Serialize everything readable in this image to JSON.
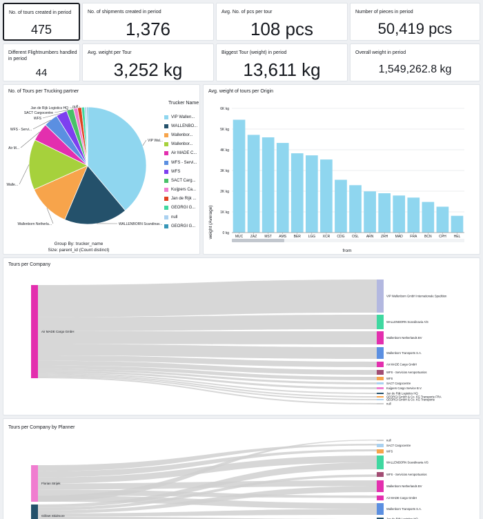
{
  "kpis": {
    "tours": {
      "title": "No. of tours created in period",
      "value": "475"
    },
    "shipments": {
      "title": "No. of shipments created in period",
      "value": "1,376"
    },
    "avg_pcs": {
      "title": "Avg. No. of pcs per tour",
      "value": "108 pcs"
    },
    "pieces": {
      "title": "Number of pieces in period",
      "value": "50,419 pcs"
    },
    "flightnumbers": {
      "title": "Different Flightnumbers handled in period",
      "value": "44"
    },
    "avg_weight": {
      "title": "Avg. weight per Tour",
      "value": "3,252 kg"
    },
    "biggest_tour": {
      "title": "Biggest Tour (weight) in period",
      "value": "13,611 kg"
    },
    "overall_weight": {
      "title": "Overall weight in period",
      "value": "1,549,262.8 kg"
    }
  },
  "pie_panel": {
    "title": "No. of Tours per Trucking partner",
    "legend_title": "Trucker Name",
    "group_by": "Group By: trucker_name",
    "size": "Size: parent_id (Count distinct)",
    "slice_labels": [
      "VIP Wal...",
      "WALLENBORN Scandinav...",
      "Wallenborn Netherla...",
      "Walle...",
      "Air M...",
      "WFS - Servi...",
      "WFS",
      "SACT Cargocentre",
      "Jan de Rijk Logistics HQ",
      "null"
    ],
    "legend_items": [
      {
        "label": "VIP Wallen...",
        "color": "#8fd6ef"
      },
      {
        "label": "WALLENBO...",
        "color": "#24516b"
      },
      {
        "label": "Wallenbor...",
        "color": "#f7a44b"
      },
      {
        "label": "Wallenbor...",
        "color": "#a6d13c"
      },
      {
        "label": "Air MADE C...",
        "color": "#e32fae"
      },
      {
        "label": "WFS - Servi...",
        "color": "#5b8fe1"
      },
      {
        "label": "WFS",
        "color": "#7d3ff0"
      },
      {
        "label": "SACT Carg...",
        "color": "#49c168"
      },
      {
        "label": "Kuijpers Ca...",
        "color": "#f07dd0"
      },
      {
        "label": "Jan de Rijk ...",
        "color": "#e04120"
      },
      {
        "label": "GEORGI G...",
        "color": "#3fd8a0"
      },
      {
        "label": "null",
        "color": "#aad1f0"
      },
      {
        "label": "GEORGI G...",
        "color": "#3796b7"
      }
    ]
  },
  "bar_panel": {
    "title": "Avg. weight of tours per Origin",
    "bar_color": "#8fd6ef"
  },
  "chart_data": {
    "type": "bar",
    "categories": [
      "MUC",
      "ZAZ",
      "MST",
      "AMS",
      "BER",
      "LGG",
      "XCR",
      "CDG",
      "OSL",
      "ARN",
      "ZRH",
      "MAD",
      "FRA",
      "BCN",
      "CPH",
      "HEL"
    ],
    "values": [
      5450,
      4720,
      4600,
      4330,
      3830,
      3730,
      3530,
      2550,
      2290,
      1990,
      1900,
      1790,
      1690,
      1480,
      1250,
      810
    ],
    "xlabel": "from",
    "ylabel": "weight (Average)",
    "ylim": [
      0,
      6000
    ],
    "yticks": [
      "0 kg",
      "1K kg",
      "2K kg",
      "3K kg",
      "4K kg",
      "5K kg",
      "6K kg"
    ]
  },
  "sankey1": {
    "title": "Tours per Company",
    "source_label": "Air MADE Cargo GmbH",
    "source_color": "#e32fae",
    "targets": [
      {
        "label": "VIP Wallenborn GmbH Internationale Spedition",
        "color": "#b3b8e0"
      },
      {
        "label": "WALLENBORN Scandinavia A/S",
        "color": "#3fd8a0"
      },
      {
        "label": "Wallenborn Netherlands BV",
        "color": "#e32fae"
      },
      {
        "label": "Wallenborn Transports S.A.",
        "color": "#5b8fe1"
      },
      {
        "label": "Air MADE Cargo GmbH",
        "color": "#e32fae"
      },
      {
        "label": "WFS - Servicios Aeroportuarios",
        "color": "#a24d73"
      },
      {
        "label": "WFS",
        "color": "#f7a44b"
      },
      {
        "label": "SACT Cargocentre",
        "color": "#aad1f0"
      },
      {
        "label": "Kuijpers Cargo Service B.V.",
        "color": "#f07dd0"
      },
      {
        "label": "Jan de Rijk Logistics HQ",
        "color": "#24516b"
      },
      {
        "label": "GEORGI GmbH & Co. KG Transporte FRA",
        "color": "#f7a44b"
      },
      {
        "label": "GEORGI GmbH & Co. KG Transporte",
        "color": "#aad1f0"
      },
      {
        "label": "null",
        "color": "#cccccc"
      }
    ]
  },
  "sankey2": {
    "title": "Tours per Company by Planner",
    "sources": [
      {
        "label": "Florian Strijek",
        "color": "#f07dd0"
      },
      {
        "label": "Gilliset Skidmore",
        "color": "#24516b"
      }
    ],
    "targets": [
      {
        "label": "null",
        "color": "#cccccc"
      },
      {
        "label": "SACT Cargocentre",
        "color": "#aad1f0"
      },
      {
        "label": "WFS",
        "color": "#f7a44b"
      },
      {
        "label": "WALLENBORN Scandinavia A/S",
        "color": "#3fd8a0"
      },
      {
        "label": "WFS - Servicios Aeroportuarios",
        "color": "#a24d73"
      },
      {
        "label": "Wallenborn Netherlands BV",
        "color": "#e32fae"
      },
      {
        "label": "Air MADE Cargo GmbH",
        "color": "#e32fae"
      },
      {
        "label": "Wallenborn Transports S.A.",
        "color": "#5b8fe1"
      },
      {
        "label": "Jan de Rijk Logistics HQ",
        "color": "#24516b"
      }
    ]
  }
}
